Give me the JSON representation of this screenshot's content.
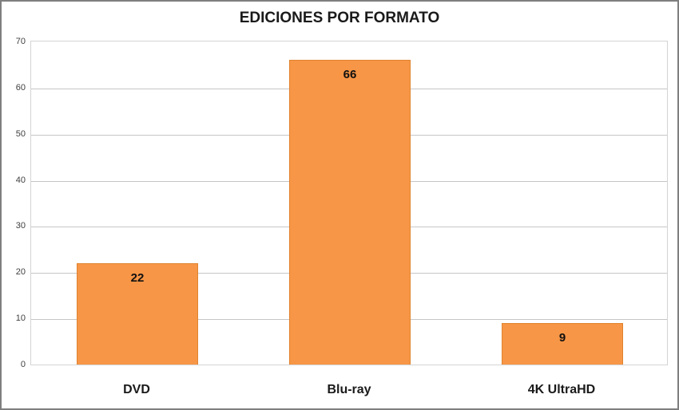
{
  "title": "EDICIONES POR FORMATO",
  "colors": {
    "bar_fill": "#F79646",
    "bar_border": "#E0832F",
    "gridline": "#C6C6C6",
    "plot_border": "#D4D4D4",
    "outer_border": "#7F7F7F",
    "title_text": "#1A1A1A",
    "axis_text": "#3F3F3F",
    "value_text": "#111111",
    "background": "#FFFFFF"
  },
  "chart_data": {
    "type": "bar",
    "title": "EDICIONES POR FORMATO",
    "categories": [
      "DVD",
      "Blu-ray",
      "4K UltraHD"
    ],
    "values": [
      22,
      66,
      9
    ],
    "data_labels": [
      "22",
      "66",
      "9"
    ],
    "xlabel": "",
    "ylabel": "",
    "ylim": [
      0,
      70
    ],
    "yticks": [
      0,
      10,
      20,
      30,
      40,
      50,
      60,
      70
    ],
    "grid": true,
    "legend": false,
    "bar_orientation": "vertical"
  }
}
